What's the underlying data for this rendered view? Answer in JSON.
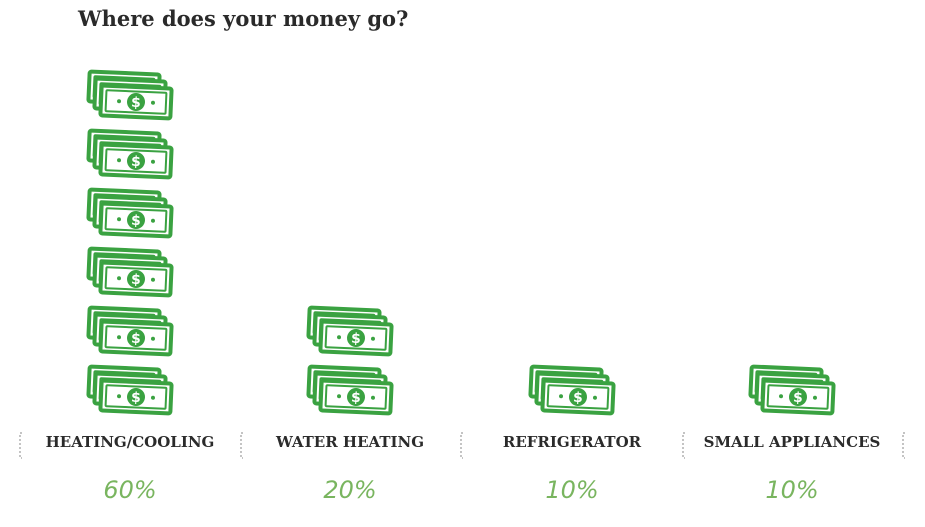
{
  "title": "Where does your money go?",
  "colors": {
    "money": "#3aa241",
    "percent": "#79b55f",
    "label": "#2b2b2b"
  },
  "icon": "dollar-bill-stack-icon",
  "chart_data": {
    "type": "bar",
    "title": "Where does your money go?",
    "categories": [
      "HEATING/COOLING",
      "WATER HEATING",
      "REFRIGERATOR",
      "SMALL APPLIANCES"
    ],
    "values": [
      60,
      20,
      10,
      10
    ],
    "value_labels": [
      "60%",
      "20%",
      "10%",
      "10%"
    ],
    "unit_per_icon": 10,
    "icons_per_category": [
      6,
      2,
      1,
      1
    ]
  }
}
